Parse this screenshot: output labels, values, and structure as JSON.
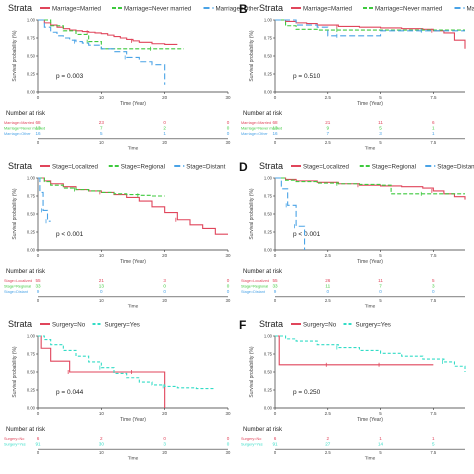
{
  "panels": [
    {
      "letter": "",
      "strata_label": "Strata",
      "legend": [
        "Marriage=Married",
        "Marriage=Never married",
        "Marriage=Other"
      ],
      "ylabel": "Survival probability (%)",
      "xlabel": "Time (Year)",
      "pvalue": "p = 0.003",
      "xticks": [
        "0",
        "10",
        "20",
        "30"
      ],
      "yticks": [
        "1.00",
        "0.75",
        "0.50",
        "0.25",
        "0.00"
      ],
      "risk_title": "Number at risk",
      "risk_time_label": "Time",
      "risk_rows": [
        {
          "label": "Marriage=Married",
          "values": [
            "68",
            "23",
            "0",
            "0"
          ]
        },
        {
          "label": "Marriage=Never married",
          "values": [
            "13",
            "7",
            "2",
            "0"
          ]
        },
        {
          "label": "Marriage=Other",
          "values": [
            "16",
            "5",
            "1",
            "0"
          ]
        }
      ]
    },
    {
      "letter": "B",
      "strata_label": "Strata",
      "legend": [
        "Marriage=Married",
        "Marriage=Never married",
        "Marriage=Other"
      ],
      "ylabel": "Survival probability (%)",
      "xlabel": "Time (Year)",
      "pvalue": "p = 0.510",
      "xticks": [
        "0",
        "2.5",
        "5",
        "7.5"
      ],
      "yticks": [
        "1.00",
        "0.75",
        "0.50",
        "0.25",
        "0.00"
      ],
      "risk_title": "Number at risk",
      "risk_time_label": "Time",
      "risk_rows": [
        {
          "label": "Marriage=Married",
          "values": [
            "68",
            "21",
            "11",
            "6"
          ]
        },
        {
          "label": "Marriage=Never married",
          "values": [
            "13",
            "9",
            "5",
            "1"
          ]
        },
        {
          "label": "Marriage=Other",
          "values": [
            "16",
            "7",
            "3",
            "1"
          ]
        }
      ]
    },
    {
      "letter": "",
      "strata_label": "Strata",
      "legend": [
        "Stage=Localized",
        "Stage=Regional",
        "Stage=Distant"
      ],
      "ylabel": "Survival probability (%)",
      "xlabel": "Time (Year)",
      "pvalue": "p < 0.001",
      "xticks": [
        "0",
        "10",
        "20",
        "30"
      ],
      "yticks": [
        "1.00",
        "0.75",
        "0.50",
        "0.25",
        "0.00"
      ],
      "risk_title": "Number at risk",
      "risk_time_label": "Time",
      "risk_rows": [
        {
          "label": "Stage=Localized",
          "values": [
            "55",
            "21",
            "3",
            "0"
          ]
        },
        {
          "label": "Stage=Regional",
          "values": [
            "33",
            "13",
            "0",
            "0"
          ]
        },
        {
          "label": "Stage=Distant",
          "values": [
            "9",
            "0",
            "0",
            "0"
          ]
        }
      ]
    },
    {
      "letter": "D",
      "strata_label": "Strata",
      "legend": [
        "Stage=Localized",
        "Stage=Regional",
        "Stage=Distant"
      ],
      "ylabel": "Survival probability (%)",
      "xlabel": "Time (Year)",
      "pvalue": "p < 0.001",
      "xticks": [
        "0",
        "2.5",
        "5",
        "7.5"
      ],
      "yticks": [
        "1.00",
        "0.75",
        "0.50",
        "0.25",
        "0.00"
      ],
      "risk_title": "Number at risk",
      "risk_time_label": "Time",
      "risk_rows": [
        {
          "label": "Stage=Localized",
          "values": [
            "55",
            "26",
            "11",
            "5"
          ]
        },
        {
          "label": "Stage=Regional",
          "values": [
            "33",
            "11",
            "7",
            "3"
          ]
        },
        {
          "label": "Stage=Distant",
          "values": [
            "9",
            "0",
            "0",
            "0"
          ]
        }
      ]
    },
    {
      "letter": "",
      "strata_label": "Strata",
      "legend": [
        "Surgery=No",
        "Surgery=Yes"
      ],
      "ylabel": "Survival probability (%)",
      "xlabel": "Time (Year)",
      "pvalue": "p = 0.044",
      "xticks": [
        "0",
        "10",
        "20",
        "30"
      ],
      "yticks": [
        "1.00",
        "0.75",
        "0.50",
        "0.25",
        "0.00"
      ],
      "risk_title": "Number at risk",
      "risk_time_label": "Time",
      "risk_rows": [
        {
          "label": "Surgery=No",
          "values": [
            "6",
            "2",
            "0",
            "0"
          ]
        },
        {
          "label": "Surgery=Yes",
          "values": [
            "91",
            "30",
            "3",
            "0"
          ]
        }
      ]
    },
    {
      "letter": "F",
      "strata_label": "Strata",
      "legend": [
        "Surgery=No",
        "Surgery=Yes"
      ],
      "ylabel": "Survival probability (%)",
      "xlabel": "Time (Year)",
      "pvalue": "p = 0.250",
      "xticks": [
        "0",
        "2.5",
        "5",
        "7.5"
      ],
      "yticks": [
        "1.00",
        "0.75",
        "0.50",
        "0.25",
        "0.00"
      ],
      "risk_title": "Number at risk",
      "risk_time_label": "Time",
      "risk_rows": [
        {
          "label": "Surgery=No",
          "values": [
            "6",
            "2",
            "1",
            "1"
          ]
        },
        {
          "label": "Surgery=Yes",
          "values": [
            "91",
            "27",
            "14",
            "5"
          ]
        }
      ]
    }
  ],
  "colors": {
    "red": "#e0455b",
    "green": "#3ec93e",
    "blue": "#4aa3e6",
    "cyan": "#33dcc6",
    "axis": "#333333",
    "text": "#444444"
  },
  "chart_data": [
    {
      "type": "line",
      "xlim": [
        0,
        30
      ],
      "ylim": [
        0,
        1
      ],
      "series": [
        {
          "name": "Marriage=Married",
          "x": [
            0,
            1,
            2,
            3,
            4,
            5,
            6,
            7,
            8,
            9,
            10,
            11,
            12,
            13,
            14,
            15,
            16,
            18,
            20,
            22
          ],
          "y": [
            1.0,
            0.96,
            0.93,
            0.9,
            0.88,
            0.86,
            0.85,
            0.84,
            0.83,
            0.82,
            0.81,
            0.79,
            0.77,
            0.75,
            0.73,
            0.71,
            0.69,
            0.67,
            0.66,
            0.66
          ]
        },
        {
          "name": "Marriage=Never married",
          "x": [
            0,
            2,
            4,
            6,
            8,
            10,
            12,
            15,
            18,
            20,
            23
          ],
          "y": [
            1.0,
            0.92,
            0.85,
            0.8,
            0.7,
            0.6,
            0.6,
            0.6,
            0.6,
            0.6,
            0.6
          ]
        },
        {
          "name": "Marriage=Other",
          "x": [
            0,
            1,
            2,
            3,
            4,
            5,
            6,
            7,
            8,
            10,
            12,
            14,
            16,
            18,
            20
          ],
          "y": [
            1.0,
            0.9,
            0.83,
            0.78,
            0.75,
            0.72,
            0.7,
            0.68,
            0.65,
            0.6,
            0.56,
            0.48,
            0.42,
            0.38,
            0.1
          ]
        }
      ]
    },
    {
      "type": "line",
      "xlim": [
        0,
        9
      ],
      "ylim": [
        0,
        1
      ],
      "series": [
        {
          "name": "Marriage=Married",
          "x": [
            0,
            0.5,
            1,
            1.5,
            2,
            3,
            4,
            5,
            6,
            7,
            7.5,
            8,
            8.5,
            9
          ],
          "y": [
            1.0,
            0.98,
            0.96,
            0.95,
            0.93,
            0.91,
            0.9,
            0.89,
            0.88,
            0.87,
            0.85,
            0.82,
            0.72,
            0.6
          ]
        },
        {
          "name": "Marriage=Never married",
          "x": [
            0,
            0.5,
            1,
            2,
            3,
            4,
            5,
            6,
            7,
            8,
            9
          ],
          "y": [
            1.0,
            0.92,
            0.87,
            0.86,
            0.86,
            0.86,
            0.86,
            0.86,
            0.86,
            0.86,
            0.86
          ]
        },
        {
          "name": "Marriage=Other",
          "x": [
            0,
            1,
            2,
            2.5,
            3,
            4,
            5,
            6,
            7,
            8,
            9
          ],
          "y": [
            1.0,
            0.93,
            0.9,
            0.78,
            0.78,
            0.78,
            0.85,
            0.85,
            0.85,
            0.85,
            0.85
          ]
        }
      ]
    },
    {
      "type": "line",
      "xlim": [
        0,
        30
      ],
      "ylim": [
        0,
        1
      ],
      "series": [
        {
          "name": "Stage=Localized",
          "x": [
            0,
            1,
            2,
            4,
            6,
            8,
            10,
            12,
            14,
            16,
            18,
            20,
            22,
            24,
            26,
            28,
            30
          ],
          "y": [
            1.0,
            0.96,
            0.92,
            0.88,
            0.84,
            0.82,
            0.8,
            0.77,
            0.73,
            0.68,
            0.6,
            0.52,
            0.42,
            0.35,
            0.3,
            0.22,
            0.22
          ]
        },
        {
          "name": "Stage=Regional",
          "x": [
            0,
            1,
            2,
            4,
            6,
            8,
            10,
            12,
            14,
            16,
            18,
            20
          ],
          "y": [
            1.0,
            0.95,
            0.9,
            0.86,
            0.84,
            0.82,
            0.8,
            0.78,
            0.77,
            0.76,
            0.75,
            0.75
          ]
        },
        {
          "name": "Stage=Distant",
          "x": [
            0,
            0.3,
            0.8,
            1.5,
            2
          ],
          "y": [
            1.0,
            0.8,
            0.55,
            0.4,
            0.4
          ]
        }
      ]
    },
    {
      "type": "line",
      "xlim": [
        0,
        9
      ],
      "ylim": [
        0,
        1
      ],
      "series": [
        {
          "name": "Stage=Localized",
          "x": [
            0,
            0.5,
            1,
            2,
            3,
            4,
            5,
            6,
            7,
            7.5,
            8,
            8.5,
            9
          ],
          "y": [
            1.0,
            0.98,
            0.96,
            0.94,
            0.92,
            0.9,
            0.89,
            0.88,
            0.86,
            0.82,
            0.78,
            0.74,
            0.7
          ]
        },
        {
          "name": "Stage=Regional",
          "x": [
            0,
            0.5,
            1,
            2,
            3,
            4,
            5,
            5.5,
            6,
            7,
            8,
            9
          ],
          "y": [
            1.0,
            0.97,
            0.95,
            0.93,
            0.92,
            0.91,
            0.9,
            0.78,
            0.78,
            0.78,
            0.78,
            0.78
          ]
        },
        {
          "name": "Stage=Distant",
          "x": [
            0,
            0.3,
            0.6,
            1.0,
            1.4
          ],
          "y": [
            1.0,
            0.85,
            0.62,
            0.33,
            0.0
          ]
        }
      ]
    },
    {
      "type": "line",
      "xlim": [
        0,
        30
      ],
      "ylim": [
        0,
        1
      ],
      "series": [
        {
          "name": "Surgery=No",
          "x": [
            0,
            0.5,
            2,
            5,
            8,
            12,
            15,
            19,
            20
          ],
          "y": [
            1.0,
            0.83,
            0.65,
            0.5,
            0.5,
            0.5,
            0.5,
            0.5,
            0.0
          ]
        },
        {
          "name": "Surgery=Yes",
          "x": [
            0,
            1,
            2,
            4,
            6,
            8,
            10,
            12,
            14,
            16,
            18,
            20,
            22,
            25,
            28
          ],
          "y": [
            1.0,
            0.95,
            0.88,
            0.8,
            0.72,
            0.64,
            0.56,
            0.48,
            0.42,
            0.36,
            0.32,
            0.3,
            0.28,
            0.27,
            0.27
          ]
        }
      ]
    },
    {
      "type": "line",
      "xlim": [
        0,
        9
      ],
      "ylim": [
        0,
        1
      ],
      "series": [
        {
          "name": "Surgery=No",
          "x": [
            0,
            0.2,
            2.5,
            5,
            7.5
          ],
          "y": [
            1.0,
            0.6,
            0.6,
            0.6,
            0.6
          ]
        },
        {
          "name": "Surgery=Yes",
          "x": [
            0,
            0.5,
            1,
            2,
            3,
            4,
            5,
            6,
            7,
            8,
            8.5,
            9
          ],
          "y": [
            1.0,
            0.96,
            0.93,
            0.88,
            0.84,
            0.8,
            0.76,
            0.72,
            0.68,
            0.64,
            0.58,
            0.5
          ]
        }
      ]
    }
  ]
}
